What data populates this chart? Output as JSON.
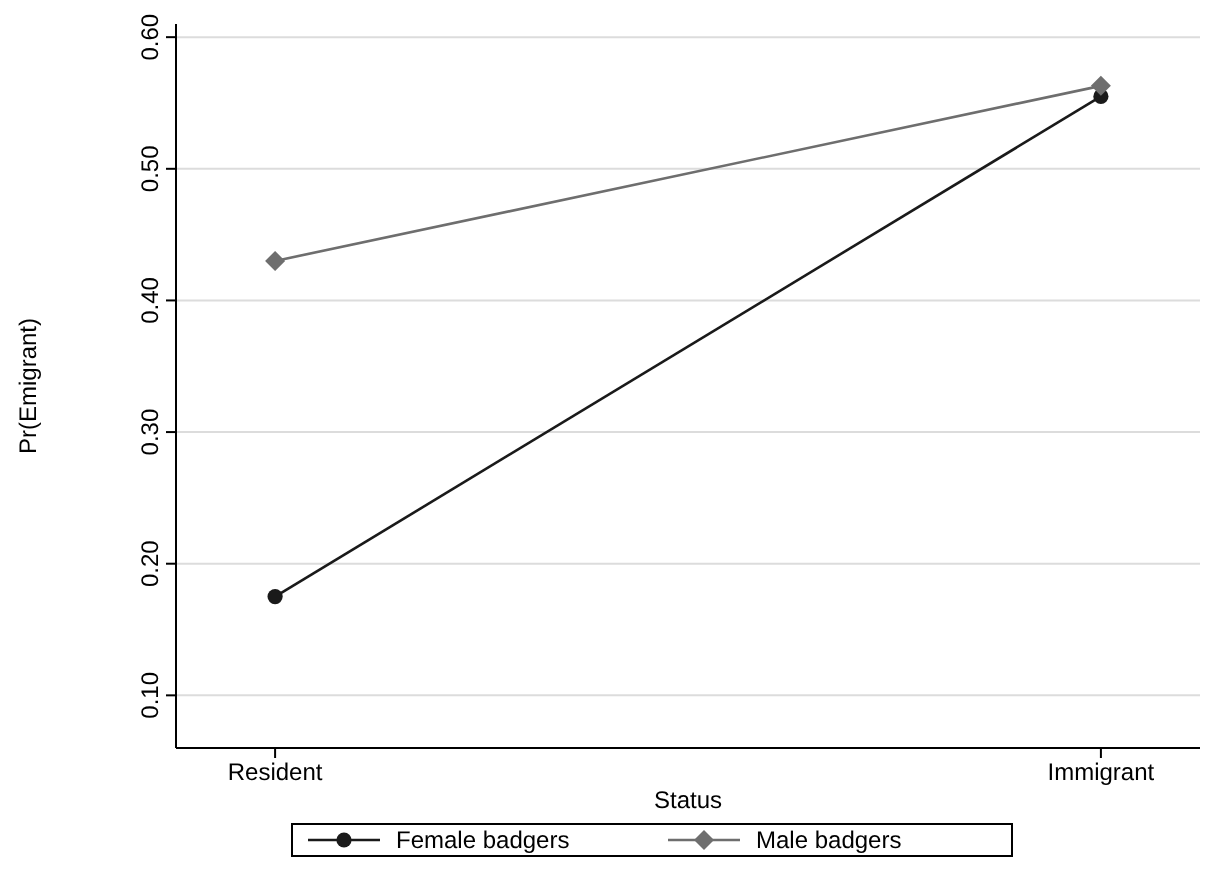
{
  "chart_data": {
    "type": "line",
    "xlabel": "Status",
    "ylabel": "Pr(Emigrant)",
    "categories": [
      "Resident",
      "Immigrant"
    ],
    "series": [
      {
        "name": "Female badgers",
        "color": "#1a1a1a",
        "marker": "circle",
        "values": [
          0.175,
          0.555
        ]
      },
      {
        "name": "Male badgers",
        "color": "#6e6e6e",
        "marker": "diamond",
        "values": [
          0.43,
          0.563
        ]
      }
    ],
    "ylim": [
      0.06,
      0.61
    ],
    "yticks": [
      {
        "value": 0.1,
        "label": "0.10"
      },
      {
        "value": 0.2,
        "label": "0.20"
      },
      {
        "value": 0.3,
        "label": "0.30"
      },
      {
        "value": 0.4,
        "label": "0.40"
      },
      {
        "value": 0.5,
        "label": "0.50"
      },
      {
        "value": 0.6,
        "label": "0.60"
      }
    ],
    "grid": "y",
    "legend": "bottom",
    "line_style": "solid"
  }
}
